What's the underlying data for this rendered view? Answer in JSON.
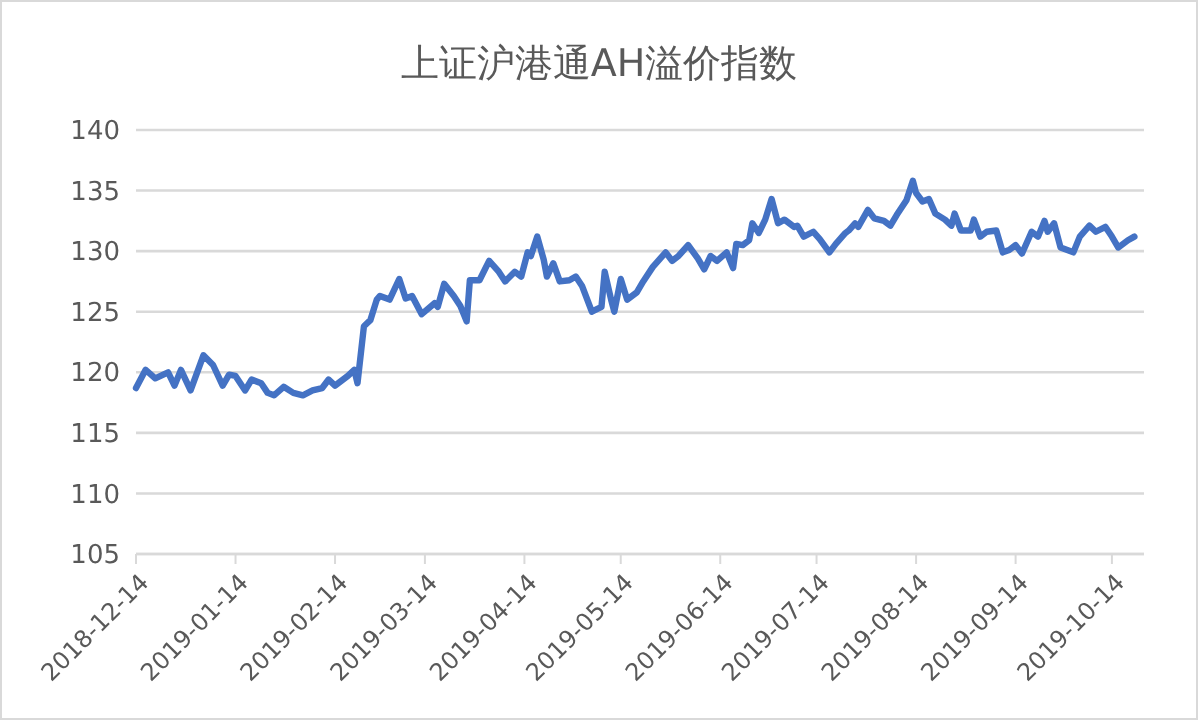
{
  "chart_data": {
    "type": "line",
    "title": "上证沪港通AH溢价指数",
    "x": [
      "2018-12-14",
      "2018-12-17",
      "2018-12-20",
      "2018-12-24",
      "2018-12-26",
      "2018-12-28",
      "2018-12-31",
      "2019-01-04",
      "2019-01-07",
      "2019-01-10",
      "2019-01-12",
      "2019-01-14",
      "2019-01-17",
      "2019-01-19",
      "2019-01-22",
      "2019-01-24",
      "2019-01-26",
      "2019-01-29",
      "2019-02-01",
      "2019-02-04",
      "2019-02-07",
      "2019-02-10",
      "2019-02-12",
      "2019-02-14",
      "2019-02-18",
      "2019-02-20",
      "2019-02-21",
      "2019-02-23",
      "2019-02-25",
      "2019-02-27",
      "2019-02-28",
      "2019-03-03",
      "2019-03-06",
      "2019-03-08",
      "2019-03-10",
      "2019-03-13",
      "2019-03-17",
      "2019-03-18",
      "2019-03-20",
      "2019-03-23",
      "2019-03-25",
      "2019-03-27",
      "2019-03-28",
      "2019-03-31",
      "2019-04-03",
      "2019-04-06",
      "2019-04-08",
      "2019-04-11",
      "2019-04-13",
      "2019-04-15",
      "2019-04-16",
      "2019-04-18",
      "2019-04-20",
      "2019-04-21",
      "2019-04-23",
      "2019-04-25",
      "2019-04-28",
      "2019-04-30",
      "2019-05-02",
      "2019-05-05",
      "2019-05-08",
      "2019-05-09",
      "2019-05-11",
      "2019-05-12",
      "2019-05-14",
      "2019-05-16",
      "2019-05-19",
      "2019-05-21",
      "2019-05-24",
      "2019-05-28",
      "2019-05-30",
      "2019-06-01",
      "2019-06-04",
      "2019-06-07",
      "2019-06-09",
      "2019-06-11",
      "2019-06-13",
      "2019-06-16",
      "2019-06-18",
      "2019-06-19",
      "2019-06-21",
      "2019-06-23",
      "2019-06-24",
      "2019-06-26",
      "2019-06-28",
      "2019-06-30",
      "2019-07-02",
      "2019-07-04",
      "2019-07-07",
      "2019-07-08",
      "2019-07-10",
      "2019-07-13",
      "2019-07-15",
      "2019-07-18",
      "2019-07-20",
      "2019-07-23",
      "2019-07-24",
      "2019-07-26",
      "2019-07-27",
      "2019-07-30",
      "2019-08-01",
      "2019-08-04",
      "2019-08-06",
      "2019-08-08",
      "2019-08-11",
      "2019-08-13",
      "2019-08-14",
      "2019-08-16",
      "2019-08-18",
      "2019-08-20",
      "2019-08-23",
      "2019-08-25",
      "2019-08-26",
      "2019-08-28",
      "2019-08-31",
      "2019-09-01",
      "2019-09-03",
      "2019-09-05",
      "2019-09-08",
      "2019-09-10",
      "2019-09-12",
      "2019-09-14",
      "2019-09-16",
      "2019-09-19",
      "2019-09-21",
      "2019-09-23",
      "2019-09-24",
      "2019-09-26",
      "2019-09-28",
      "2019-10-02",
      "2019-10-04",
      "2019-10-07",
      "2019-10-09",
      "2019-10-12",
      "2019-10-14",
      "2019-10-16",
      "2019-10-19",
      "2019-10-21"
    ],
    "series": [
      {
        "color": "#4472c4",
        "values": [
          118.7,
          120.2,
          119.5,
          120.0,
          118.9,
          120.2,
          118.5,
          121.4,
          120.6,
          118.9,
          119.8,
          119.7,
          118.5,
          119.4,
          119.1,
          118.3,
          118.1,
          118.8,
          118.3,
          118.1,
          118.5,
          118.7,
          119.4,
          118.9,
          119.7,
          120.2,
          119.1,
          123.8,
          124.3,
          126.0,
          126.3,
          126.0,
          127.7,
          126.1,
          126.3,
          124.8,
          125.7,
          125.4,
          127.3,
          126.3,
          125.5,
          124.2,
          127.6,
          127.6,
          129.2,
          128.3,
          127.5,
          128.3,
          127.9,
          129.9,
          129.6,
          131.2,
          129.3,
          127.9,
          129.0,
          127.5,
          127.6,
          127.9,
          127.1,
          125.0,
          125.4,
          128.3,
          126.0,
          125.0,
          127.7,
          126.0,
          126.6,
          127.5,
          128.7,
          129.9,
          129.2,
          129.6,
          130.5,
          129.4,
          128.5,
          129.6,
          129.2,
          129.9,
          128.6,
          130.6,
          130.5,
          130.9,
          132.3,
          131.5,
          132.6,
          134.3,
          132.3,
          132.6,
          132.0,
          132.1,
          131.2,
          131.6,
          131.0,
          129.9,
          130.6,
          131.5,
          131.7,
          132.3,
          132.0,
          133.4,
          132.7,
          132.5,
          132.1,
          133.0,
          134.2,
          135.8,
          134.8,
          134.1,
          134.3,
          133.1,
          132.6,
          132.1,
          133.1,
          131.7,
          131.7,
          132.6,
          131.2,
          131.6,
          131.7,
          129.9,
          130.1,
          130.5,
          129.8,
          131.6,
          131.2,
          132.5,
          131.6,
          132.3,
          130.3,
          129.9,
          131.2,
          132.1,
          131.6,
          132.0,
          131.2,
          130.3,
          130.9,
          131.2
        ]
      }
    ],
    "xlim": [
      "2018-12-14",
      "2019-10-24"
    ],
    "xticks": [
      "2018-12-14",
      "2019-01-14",
      "2019-02-14",
      "2019-03-14",
      "2019-04-14",
      "2019-05-14",
      "2019-06-14",
      "2019-07-14",
      "2019-08-14",
      "2019-09-14",
      "2019-10-14"
    ],
    "ylim": [
      105,
      140
    ],
    "yticks": [
      105,
      110,
      115,
      120,
      125,
      130,
      135,
      140
    ],
    "grid": "y",
    "line_style": "solid",
    "marker": "none"
  }
}
